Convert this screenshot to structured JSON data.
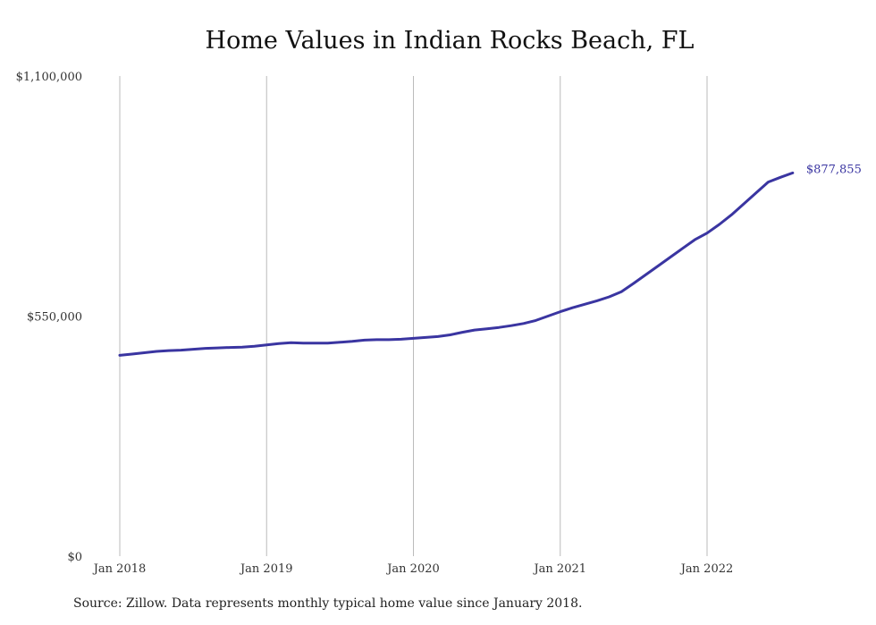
{
  "title": "Home Values in Indian Rocks Beach, FL",
  "source": "Source: Zillow. Data represents monthly typical home value since January 2018.",
  "colors": {
    "line": "#3a35a1",
    "grid": "#bbbbbb",
    "text": "#333333"
  },
  "chart_data": {
    "type": "line",
    "title": "Home Values in Indian Rocks Beach, FL",
    "xlabel": "",
    "ylabel": "",
    "x_ticks": [
      "Jan 2018",
      "Jan 2019",
      "Jan 2020",
      "Jan 2021",
      "Jan 2022"
    ],
    "y_ticks": [
      "$0",
      "$550,000",
      "$1,100,000"
    ],
    "ylim": [
      0,
      1100000
    ],
    "x_start": "2018-01",
    "x_end": "2022-07",
    "grid": "vertical",
    "end_label": "$877,855",
    "series": [
      {
        "values": [
          460000,
          463000,
          466000,
          469000,
          471000,
          472000,
          474000,
          476000,
          477000,
          478000,
          479000,
          481000,
          484000,
          487000,
          489000,
          488000,
          488000,
          488000,
          490000,
          492000,
          495000,
          496000,
          496000,
          497000,
          499000,
          501000,
          503000,
          507000,
          513000,
          518000,
          521000,
          524000,
          528000,
          533000,
          540000,
          550000,
          560000,
          569000,
          577000,
          585000,
          594000,
          606000,
          625000,
          645000,
          665000,
          685000,
          705000,
          725000,
          740000,
          760000,
          782000,
          807000,
          832000,
          857000,
          868000,
          877855
        ]
      }
    ]
  }
}
